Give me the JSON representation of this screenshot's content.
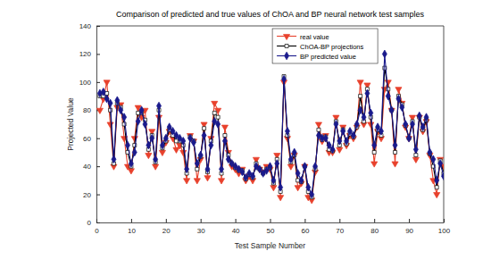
{
  "chart_data": {
    "type": "line",
    "title": "Comparison of predicted and true values of ChOA and BP neural network test samples",
    "x_label": "Test Sample Number",
    "y_label": "Projected Value",
    "x": [
      1,
      2,
      3,
      4,
      5,
      6,
      7,
      8,
      9,
      10,
      11,
      12,
      13,
      14,
      15,
      16,
      17,
      18,
      19,
      20,
      21,
      22,
      23,
      24,
      25,
      26,
      27,
      28,
      29,
      30,
      31,
      32,
      33,
      34,
      35,
      36,
      37,
      38,
      39,
      40,
      41,
      42,
      43,
      44,
      45,
      46,
      47,
      48,
      49,
      50,
      51,
      52,
      53,
      54,
      55,
      56,
      57,
      58,
      59,
      60,
      61,
      62,
      63,
      64,
      65,
      66,
      67,
      68,
      69,
      70,
      71,
      72,
      73,
      74,
      75,
      76,
      77,
      78,
      79,
      80,
      81,
      82,
      83,
      84,
      85,
      86,
      87,
      88,
      89,
      90,
      91,
      92,
      93,
      94,
      95,
      96,
      97,
      98,
      99,
      100
    ],
    "xlim": [
      0,
      100
    ],
    "xticks": [
      0,
      10,
      20,
      30,
      40,
      50,
      60,
      70,
      80,
      90,
      100
    ],
    "ylim": [
      0,
      140
    ],
    "yticks": [
      0,
      20,
      40,
      60,
      80,
      100,
      120,
      140
    ],
    "grid": false,
    "legend": "upper right",
    "series": [
      {
        "name": "real value",
        "color": "#e8412c",
        "marker": "triangle-down",
        "line_style": "solid",
        "values": [
          80,
          88,
          100,
          70,
          40,
          82,
          84,
          60,
          40,
          37,
          60,
          82,
          75,
          80,
          48,
          65,
          40,
          75,
          50,
          57,
          65,
          60,
          52,
          55,
          50,
          30,
          62,
          58,
          30,
          45,
          70,
          32,
          60,
          85,
          80,
          30,
          68,
          50,
          40,
          38,
          35,
          38,
          30,
          33,
          30,
          45,
          38,
          36,
          40,
          38,
          25,
          48,
          18,
          100,
          60,
          40,
          48,
          25,
          28,
          40,
          18,
          16,
          36,
          70,
          58,
          62,
          50,
          50,
          75,
          52,
          68,
          55,
          62,
          60,
          68,
          100,
          70,
          98,
          70,
          42,
          65,
          60,
          95,
          100,
          80,
          42,
          95,
          85,
          68,
          60,
          75,
          45,
          75,
          65,
          72,
          48,
          30,
          20,
          45,
          40
        ]
      },
      {
        "name": "ChOA-BP projections",
        "color": "#000000",
        "marker": "square",
        "line_style": "solid",
        "values": [
          90,
          90,
          92,
          80,
          42,
          85,
          82,
          70,
          50,
          40,
          55,
          78,
          78,
          73,
          52,
          62,
          43,
          80,
          53,
          58,
          66,
          62,
          58,
          58,
          55,
          35,
          61,
          58,
          38,
          47,
          67,
          36,
          58,
          78,
          75,
          35,
          62,
          48,
          42,
          39,
          37,
          37,
          31,
          34,
          32,
          42,
          38,
          35,
          38,
          39,
          28,
          45,
          22,
          104,
          62,
          43,
          48,
          30,
          29,
          40,
          22,
          18,
          38,
          66,
          59,
          61,
          52,
          51,
          72,
          55,
          66,
          56,
          63,
          61,
          68,
          90,
          72,
          95,
          75,
          50,
          66,
          62,
          110,
          95,
          80,
          50,
          90,
          84,
          69,
          60,
          72,
          48,
          75,
          66,
          73,
          49,
          40,
          25,
          44,
          35
        ]
      },
      {
        "name": "BP predicted value",
        "color": "#1a1a8c",
        "marker": "diamond",
        "line_style": "solid",
        "values": [
          92,
          93,
          88,
          85,
          45,
          87,
          80,
          75,
          55,
          42,
          50,
          72,
          80,
          70,
          55,
          60,
          45,
          83,
          55,
          60,
          68,
          65,
          62,
          60,
          58,
          38,
          60,
          57,
          42,
          48,
          62,
          38,
          55,
          72,
          70,
          38,
          58,
          45,
          42,
          40,
          38,
          36,
          32,
          35,
          33,
          40,
          38,
          35,
          37,
          40,
          30,
          42,
          25,
          102,
          65,
          45,
          50,
          35,
          30,
          40,
          25,
          20,
          40,
          62,
          60,
          60,
          55,
          52,
          70,
          58,
          65,
          58,
          65,
          62,
          70,
          80,
          75,
          92,
          78,
          55,
          68,
          65,
          120,
          90,
          80,
          55,
          88,
          82,
          70,
          60,
          70,
          52,
          76,
          68,
          75,
          50,
          45,
          30,
          42,
          33
        ]
      }
    ]
  }
}
